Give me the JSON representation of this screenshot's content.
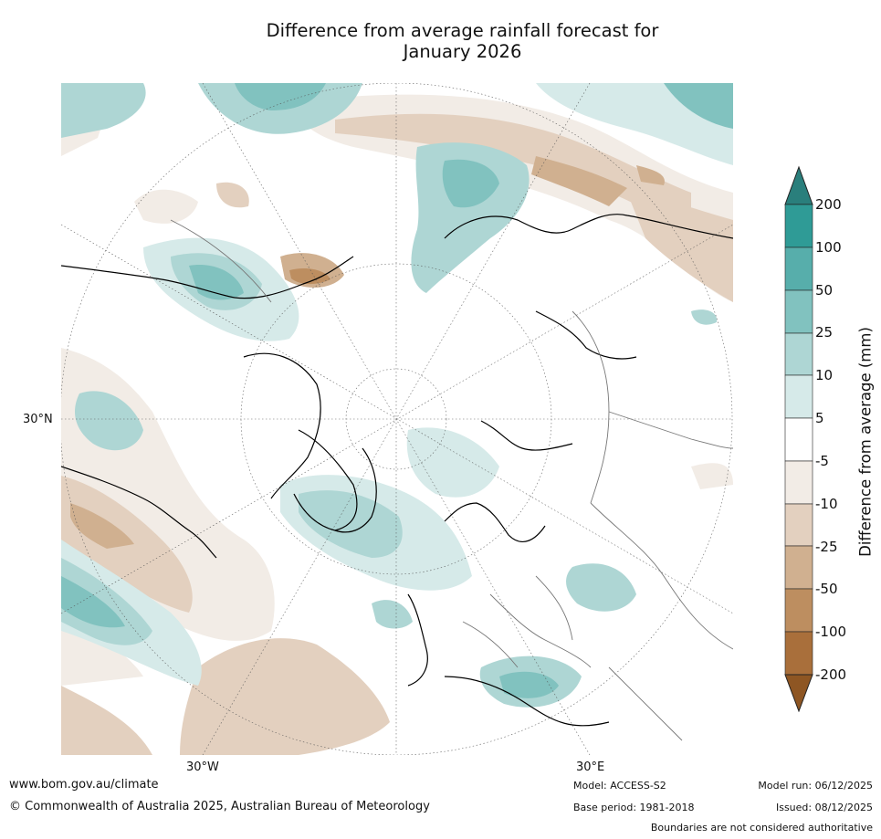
{
  "title": {
    "line1": "Difference from average rainfall forecast for",
    "line2": "January 2026"
  },
  "map": {
    "projection": "north-polar-stereographic",
    "region": "Northern Hemisphere (Arctic-centred)",
    "lat_label": "30°N",
    "lon_labels": [
      "30°W",
      "30°E"
    ]
  },
  "colorbar": {
    "title": "Difference from average (mm)",
    "ticks": [
      "200",
      "100",
      "50",
      "25",
      "10",
      "5",
      "-5",
      "-10",
      "-25",
      "-50",
      "-100",
      "-200"
    ],
    "colors": {
      "above_200": "#2a7f7c",
      "100_200": "#2f9b96",
      "50_100": "#57aeab",
      "25_50": "#81c2bf",
      "10_25": "#aed6d4",
      "5_10": "#d6eae9",
      "neutral": "#ffffff",
      "m10_m5": "#f2ece6",
      "m25_m10": "#e3d0bf",
      "m50_m25": "#d0b090",
      "m100_m50": "#bd8e60",
      "m200_m100": "#a96f3b",
      "below_m200": "#8e5623"
    }
  },
  "footer": {
    "website": "www.bom.gov.au/climate",
    "copyright": "© Commonwealth of Australia 2025, Australian Bureau of Meteorology",
    "model": "Model: ACCESS-S2",
    "base_period": "Base period: 1981-2018",
    "model_run": "Model run: 06/12/2025",
    "issued": "Issued: 08/12/2025",
    "disclaimer": "Boundaries are not considered authoritative"
  }
}
